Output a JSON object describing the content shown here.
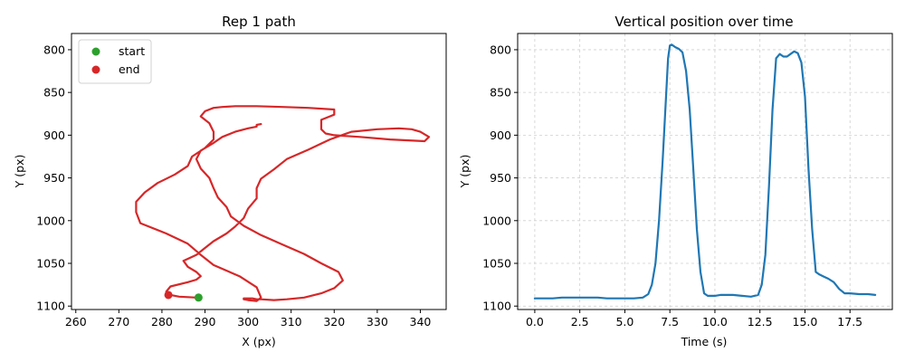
{
  "chart_data": [
    {
      "type": "line",
      "title": "Rep 1 path",
      "xlabel": "X (px)",
      "ylabel": "Y (px)",
      "xlim": [
        259,
        346
      ],
      "ylim": [
        1104,
        781
      ],
      "y_inverted": true,
      "xticks": [
        260,
        270,
        280,
        290,
        300,
        310,
        320,
        330,
        340
      ],
      "yticks": [
        800,
        850,
        900,
        950,
        1000,
        1050,
        1100
      ],
      "grid": false,
      "legend_position": "upper-left",
      "line_color": "#d62728",
      "series": [
        {
          "x": [
            288,
            284,
            282,
            281,
            282,
            286,
            288,
            289,
            288,
            286,
            285,
            288,
            290,
            292,
            295,
            297,
            299,
            300,
            302,
            302,
            303,
            306,
            309,
            314,
            319,
            324,
            330,
            335,
            338,
            340,
            342,
            341,
            333,
            326,
            320,
            318,
            317,
            317,
            317,
            320,
            320,
            314,
            308,
            302,
            297,
            294,
            292,
            290,
            289,
            291,
            292,
            292,
            290,
            287,
            286,
            283,
            279,
            276,
            274,
            274,
            275,
            281,
            286,
            289,
            292,
            298,
            302,
            303,
            302,
            300,
            299,
            299,
            301,
            302,
            303,
            306,
            309,
            313,
            317,
            320,
            322,
            321,
            317,
            313,
            308,
            303,
            299,
            296,
            295,
            293,
            292,
            291,
            289,
            288,
            289,
            292,
            294,
            297,
            300,
            302,
            302,
            303
          ],
          "y": [
            1090,
            1089,
            1087,
            1083,
            1077,
            1072,
            1069,
            1065,
            1060,
            1054,
            1047,
            1040,
            1032,
            1024,
            1015,
            1007,
            997,
            986,
            974,
            962,
            951,
            940,
            928,
            917,
            905,
            896,
            893,
            892,
            893,
            896,
            902,
            907,
            905,
            902,
            900,
            898,
            893,
            888,
            882,
            876,
            870,
            868,
            867,
            866,
            866,
            867,
            868,
            872,
            878,
            886,
            896,
            905,
            915,
            925,
            936,
            946,
            956,
            967,
            978,
            990,
            1003,
            1015,
            1027,
            1040,
            1052,
            1065,
            1078,
            1090,
            1094,
            1093,
            1092,
            1091,
            1091,
            1092,
            1092,
            1093,
            1092,
            1090,
            1085,
            1079,
            1070,
            1060,
            1050,
            1039,
            1028,
            1017,
            1006,
            995,
            984,
            973,
            962,
            950,
            939,
            928,
            918,
            909,
            902,
            896,
            892,
            890,
            888,
            887
          ]
        }
      ],
      "legend": [
        {
          "label": "start",
          "color": "#2ca02c"
        },
        {
          "label": "end",
          "color": "#d62728"
        }
      ],
      "start_point": {
        "x": 288.5,
        "y": 1090
      },
      "end_point": {
        "x": 281.5,
        "y": 1087
      }
    },
    {
      "type": "line",
      "title": "Vertical position over time",
      "xlabel": "Time (s)",
      "ylabel": "Y (px)",
      "xlim": [
        -0.95,
        19.85
      ],
      "ylim": [
        1104,
        781
      ],
      "y_inverted": true,
      "xticks": [
        0.0,
        2.5,
        5.0,
        7.5,
        10.0,
        12.5,
        15.0,
        17.5
      ],
      "xtick_labels": [
        "0.0",
        "2.5",
        "5.0",
        "7.5",
        "10.0",
        "12.5",
        "15.0",
        "17.5"
      ],
      "yticks": [
        800,
        850,
        900,
        950,
        1000,
        1050,
        1100
      ],
      "grid": true,
      "line_color": "#1f77b4",
      "series": [
        {
          "x": [
            0.0,
            0.5,
            1.0,
            1.5,
            2.0,
            2.5,
            3.0,
            3.5,
            4.0,
            4.5,
            5.0,
            5.5,
            6.0,
            6.3,
            6.5,
            6.7,
            6.9,
            7.1,
            7.3,
            7.4,
            7.5,
            7.6,
            7.8,
            8.0,
            8.2,
            8.4,
            8.6,
            8.8,
            9.0,
            9.2,
            9.4,
            9.6,
            9.8,
            10.0,
            10.3,
            10.6,
            10.8,
            11.0,
            11.5,
            12.0,
            12.4,
            12.6,
            12.8,
            13.0,
            13.2,
            13.4,
            13.6,
            13.8,
            14.0,
            14.2,
            14.4,
            14.6,
            14.8,
            15.0,
            15.2,
            15.4,
            15.6,
            15.8,
            16.0,
            16.3,
            16.6,
            16.9,
            17.2,
            17.5,
            18.0,
            18.5,
            18.9
          ],
          "y": [
            1091,
            1091,
            1091,
            1090,
            1090,
            1090,
            1090,
            1090,
            1091,
            1091,
            1091,
            1091,
            1090,
            1086,
            1075,
            1050,
            1000,
            930,
            850,
            810,
            795,
            794,
            797,
            799,
            803,
            825,
            870,
            940,
            1010,
            1060,
            1085,
            1088,
            1088,
            1088,
            1087,
            1087,
            1087,
            1087,
            1088,
            1089,
            1087,
            1075,
            1040,
            960,
            870,
            810,
            805,
            808,
            808,
            805,
            802,
            804,
            815,
            855,
            940,
            1010,
            1060,
            1063,
            1065,
            1068,
            1072,
            1080,
            1085,
            1085,
            1086,
            1086,
            1087
          ]
        }
      ]
    }
  ]
}
